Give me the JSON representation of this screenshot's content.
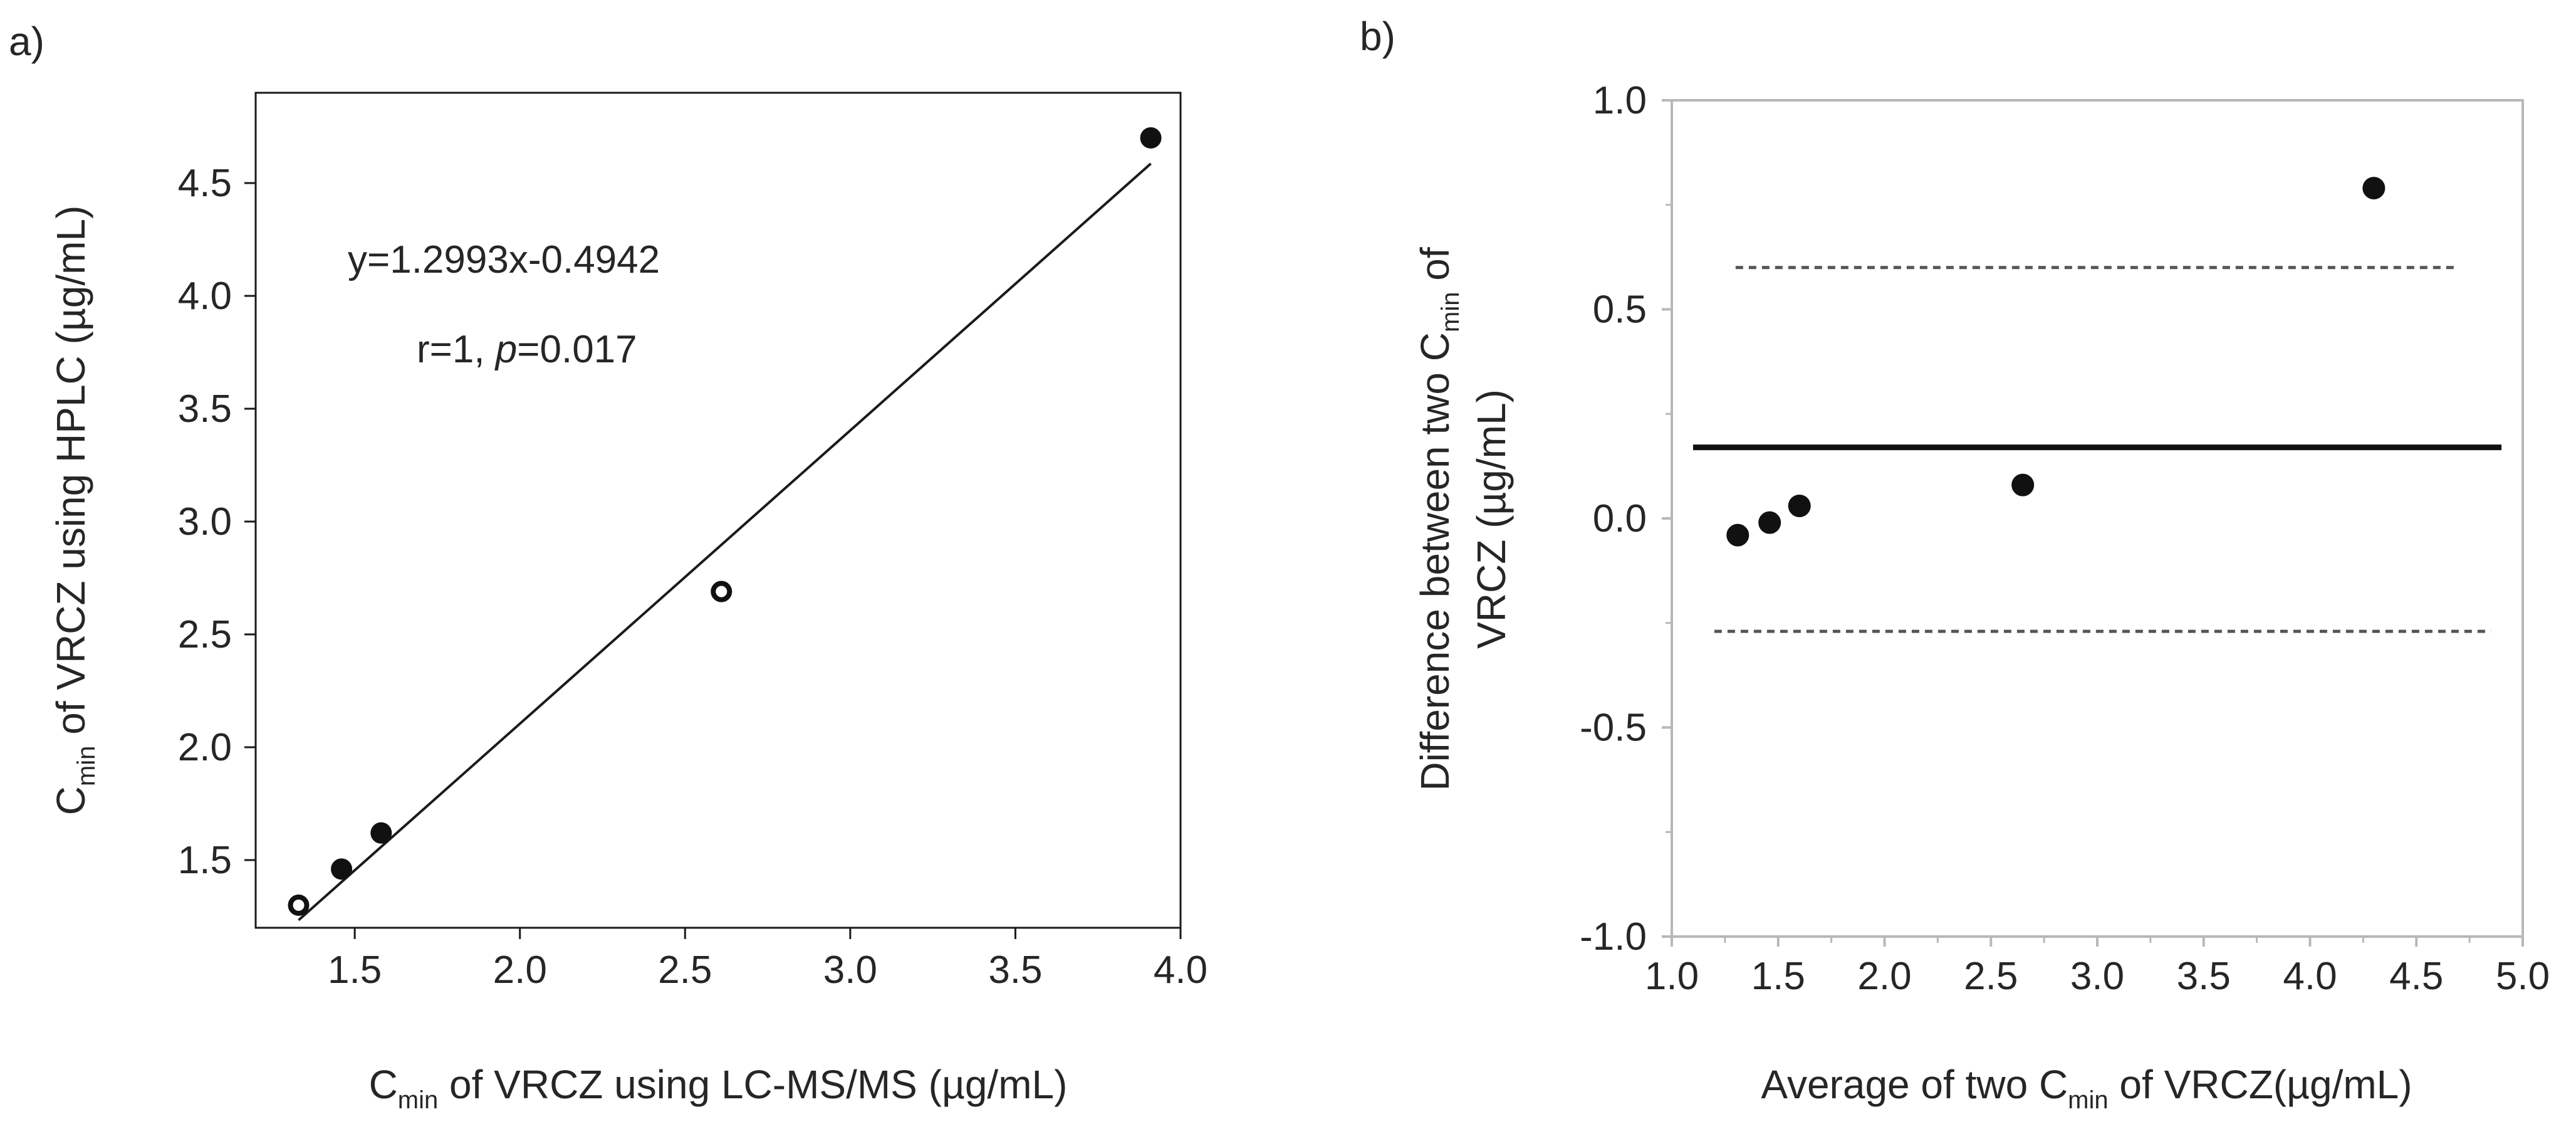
{
  "chart_data": [
    {
      "type": "scatter",
      "panel_label": "a)",
      "xlabel": {
        "main": "C",
        "sub": "min",
        "rest": " of VRCZ using LC-MS/MS (µg/mL)"
      },
      "ylabel": {
        "main": "C",
        "sub": "min",
        "rest": " of VRCZ using HPLC (µg/mL)"
      },
      "xlim": [
        1.2,
        4.0
      ],
      "ylim": [
        1.2,
        4.9
      ],
      "xticks": [
        "1.5",
        "2.0",
        "2.5",
        "3.0",
        "3.5",
        "4.0"
      ],
      "yticks": [
        "1.5",
        "2.0",
        "2.5",
        "3.0",
        "3.5",
        "4.0",
        "4.5"
      ],
      "points": [
        {
          "x": 1.33,
          "y": 1.3,
          "style": "open"
        },
        {
          "x": 1.46,
          "y": 1.46,
          "style": "filled"
        },
        {
          "x": 1.58,
          "y": 1.62,
          "style": "filled"
        },
        {
          "x": 2.61,
          "y": 2.69,
          "style": "open"
        },
        {
          "x": 3.91,
          "y": 4.7,
          "style": "filled"
        }
      ],
      "fit_line": {
        "slope": 1.2993,
        "intercept": -0.4942,
        "x_range": [
          1.33,
          3.91
        ]
      },
      "equation": "y=1.2993x-0.4942",
      "stats": {
        "r_text": "r=1, ",
        "p_label": "p",
        "p_value_text": "=0.017"
      },
      "grid": false
    },
    {
      "type": "scatter",
      "panel_label": "b)",
      "xlabel": {
        "main": "Average of two C",
        "sub": "min",
        "rest": " of VRCZ(µg/mL)"
      },
      "ylabel": {
        "main": "Difference between two C",
        "sub": "min",
        "rest": " of",
        "line2": "VRCZ (µg/mL)"
      },
      "xlim": [
        1.0,
        5.0
      ],
      "ylim": [
        -1.0,
        1.0
      ],
      "xticks": [
        "1.0",
        "1.5",
        "2.0",
        "2.5",
        "3.0",
        "3.5",
        "4.0",
        "4.5",
        "5.0"
      ],
      "yticks": [
        "-1.0",
        "-0.5",
        "0.0",
        "0.5",
        "1.0"
      ],
      "points": [
        {
          "x": 1.31,
          "y": -0.04
        },
        {
          "x": 1.46,
          "y": -0.01
        },
        {
          "x": 1.6,
          "y": 0.03
        },
        {
          "x": 2.65,
          "y": 0.08
        },
        {
          "x": 4.3,
          "y": 0.79
        }
      ],
      "mean_line": {
        "y": 0.17,
        "x_range": [
          1.1,
          4.9
        ]
      },
      "upper_limit": {
        "y": 0.6,
        "x_range": [
          1.3,
          4.7
        ]
      },
      "lower_limit": {
        "y": -0.27,
        "x_range": [
          1.2,
          4.85
        ]
      },
      "grid": false
    }
  ]
}
